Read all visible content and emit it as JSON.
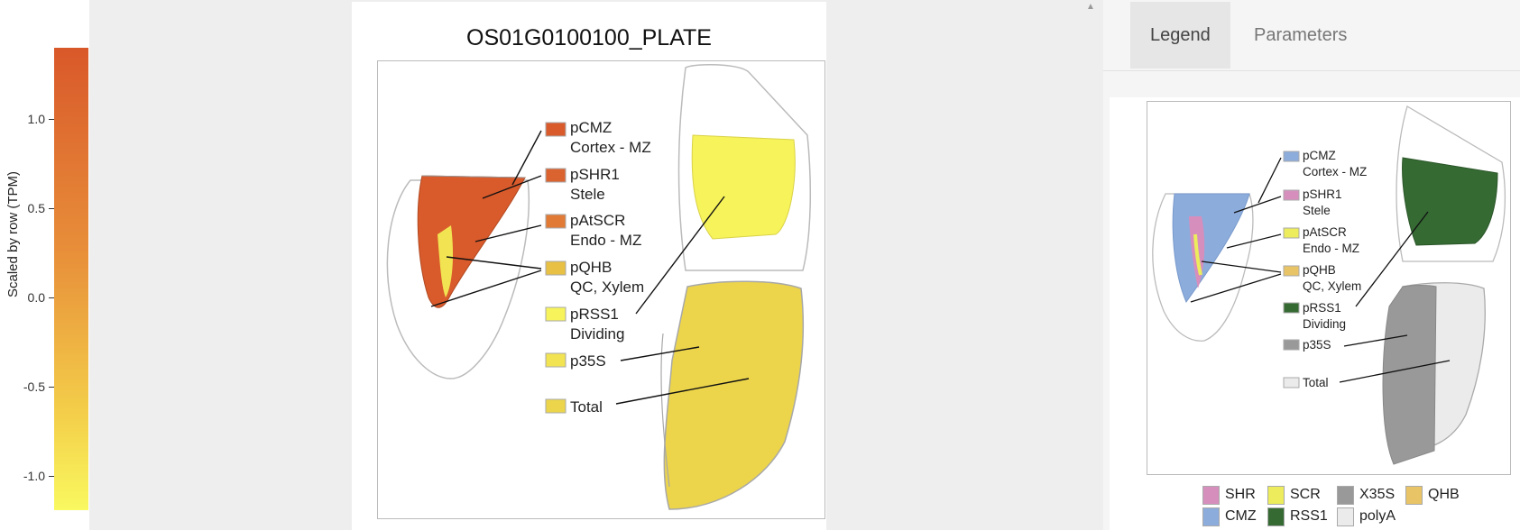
{
  "scale": {
    "axis_title": "Scaled by row (TPM)",
    "ticks": [
      "1.0",
      "0.5",
      "0.0",
      "-0.5",
      "-1.0"
    ]
  },
  "plot": {
    "title": "OS01G0100100_PLATE",
    "labels": [
      {
        "name": "pCMZ",
        "sub": "Cortex - MZ",
        "color": "#d95a2b"
      },
      {
        "name": "pSHR1",
        "sub": "Stele",
        "color": "#db6330"
      },
      {
        "name": "pAtSCR",
        "sub": "Endo - MZ",
        "color": "#e07a35"
      },
      {
        "name": "pQHB",
        "sub": "QC, Xylem",
        "color": "#e8c043"
      },
      {
        "name": "pRSS1",
        "sub": "Dividing",
        "color": "#f7f35a"
      },
      {
        "name": "p35S",
        "sub": "",
        "color": "#f1e351"
      },
      {
        "name": "Total",
        "sub": "",
        "color": "#ecd54b"
      }
    ]
  },
  "tabs": {
    "legend": "Legend",
    "parameters": "Parameters"
  },
  "legend_plot": {
    "labels": [
      {
        "name": "pCMZ",
        "sub": "Cortex - MZ",
        "color": "#8cacdc"
      },
      {
        "name": "pSHR1",
        "sub": "Stele",
        "color": "#d68fbd"
      },
      {
        "name": "pAtSCR",
        "sub": "Endo - MZ",
        "color": "#ecec5c"
      },
      {
        "name": "pQHB",
        "sub": "QC, Xylem",
        "color": "#e8c466"
      },
      {
        "name": "pRSS1",
        "sub": "Dividing",
        "color": "#356a33"
      },
      {
        "name": "p35S",
        "sub": "",
        "color": "#999999"
      },
      {
        "name": "Total",
        "sub": "",
        "color": "#ebebeb"
      }
    ],
    "key": [
      {
        "label": "SHR",
        "color": "#d68fbd"
      },
      {
        "label": "SCR",
        "color": "#ecec5c"
      },
      {
        "label": "X35S",
        "color": "#999999"
      },
      {
        "label": "QHB",
        "color": "#e8c466"
      },
      {
        "label": "CMZ",
        "color": "#8cacdc"
      },
      {
        "label": "RSS1",
        "color": "#356a33"
      },
      {
        "label": "polyA",
        "color": "#ebebeb"
      }
    ]
  }
}
